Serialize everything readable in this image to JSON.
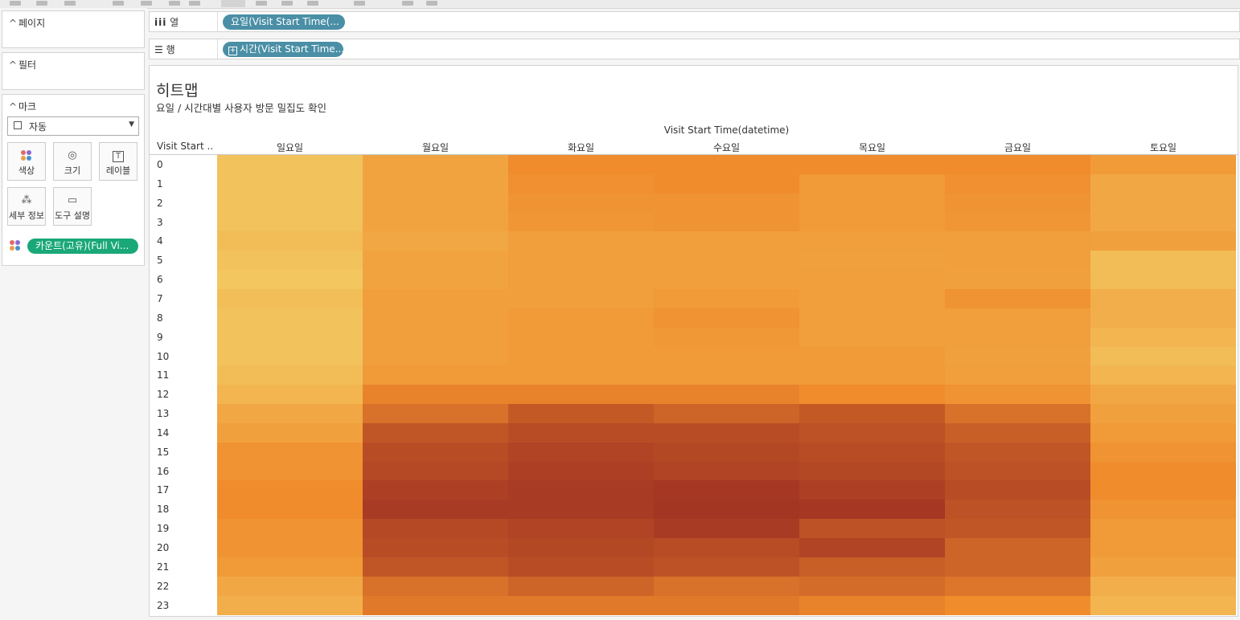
{
  "left_panel": {
    "pages_label": "페이지",
    "filters_label": "필터",
    "marks_label": "마크",
    "mark_type": "자동",
    "buttons": {
      "color": "색상",
      "size": "크기",
      "label": "레이블",
      "detail": "세부 정보",
      "tooltip": "도구 설명"
    },
    "color_field": "카운트(고유)(Full Vi..."
  },
  "shelves": {
    "columns_label": "열",
    "columns_pill": "요일(Visit Start Time(...",
    "rows_label": "행",
    "rows_pill": "시간(Visit Start Time..."
  },
  "colors": {
    "columns_pill": "#4a8fa6",
    "rows_pill": "#4a8fa6",
    "color_pill": "#1aa878",
    "heat_low": "#f3d068",
    "heat_mid": "#f08c2c",
    "heat_high": "#a03222"
  },
  "chart_data": {
    "type": "heatmap",
    "title": "히트맵",
    "subtitle": "요일 / 시간대별 사용자 방문 밀집도 확인",
    "xlabel": "Visit Start Time(datetime)",
    "ylabel": "Visit Start ..",
    "x_categories": [
      "일요일",
      "월요일",
      "화요일",
      "수요일",
      "목요일",
      "금요일",
      "토요일"
    ],
    "y_categories": [
      "0",
      "1",
      "2",
      "3",
      "4",
      "5",
      "6",
      "7",
      "8",
      "9",
      "10",
      "11",
      "12",
      "13",
      "14",
      "15",
      "16",
      "17",
      "18",
      "19",
      "20",
      "21",
      "22",
      "23"
    ],
    "value_range": [
      0,
      1
    ],
    "values": [
      [
        0.1,
        0.33,
        0.5,
        0.5,
        0.5,
        0.5,
        0.4
      ],
      [
        0.1,
        0.33,
        0.47,
        0.5,
        0.4,
        0.47,
        0.3
      ],
      [
        0.1,
        0.33,
        0.45,
        0.45,
        0.4,
        0.45,
        0.3
      ],
      [
        0.1,
        0.33,
        0.43,
        0.45,
        0.4,
        0.43,
        0.3
      ],
      [
        0.15,
        0.3,
        0.37,
        0.37,
        0.37,
        0.37,
        0.35
      ],
      [
        0.1,
        0.33,
        0.37,
        0.37,
        0.35,
        0.37,
        0.15
      ],
      [
        0.07,
        0.33,
        0.37,
        0.37,
        0.37,
        0.35,
        0.15
      ],
      [
        0.13,
        0.37,
        0.37,
        0.4,
        0.37,
        0.45,
        0.25
      ],
      [
        0.1,
        0.37,
        0.4,
        0.45,
        0.37,
        0.37,
        0.25
      ],
      [
        0.1,
        0.37,
        0.4,
        0.42,
        0.37,
        0.37,
        0.2
      ],
      [
        0.1,
        0.37,
        0.4,
        0.4,
        0.4,
        0.35,
        0.15
      ],
      [
        0.15,
        0.4,
        0.4,
        0.4,
        0.4,
        0.37,
        0.2
      ],
      [
        0.2,
        0.55,
        0.55,
        0.55,
        0.5,
        0.45,
        0.3
      ],
      [
        0.3,
        0.65,
        0.78,
        0.72,
        0.78,
        0.65,
        0.35
      ],
      [
        0.35,
        0.8,
        0.85,
        0.85,
        0.82,
        0.75,
        0.4
      ],
      [
        0.45,
        0.85,
        0.9,
        0.88,
        0.85,
        0.8,
        0.45
      ],
      [
        0.45,
        0.87,
        0.92,
        0.9,
        0.88,
        0.82,
        0.5
      ],
      [
        0.5,
        0.92,
        0.95,
        0.97,
        0.92,
        0.85,
        0.5
      ],
      [
        0.5,
        0.95,
        0.95,
        0.98,
        0.97,
        0.82,
        0.45
      ],
      [
        0.45,
        0.87,
        0.9,
        0.95,
        0.82,
        0.8,
        0.4
      ],
      [
        0.45,
        0.85,
        0.88,
        0.85,
        0.9,
        0.72,
        0.4
      ],
      [
        0.4,
        0.8,
        0.85,
        0.82,
        0.75,
        0.72,
        0.35
      ],
      [
        0.3,
        0.65,
        0.72,
        0.65,
        0.68,
        0.62,
        0.25
      ],
      [
        0.25,
        0.6,
        0.6,
        0.6,
        0.55,
        0.5,
        0.2
      ]
    ]
  }
}
